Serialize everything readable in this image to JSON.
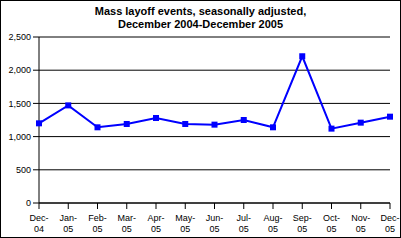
{
  "chart_data": {
    "type": "line",
    "title": "Mass layoff events, seasonally adjusted, December 2004-December 2005",
    "categories": [
      "Dec-04",
      "Jan-05",
      "Feb-05",
      "Mar-05",
      "Apr-05",
      "May-05",
      "Jun-05",
      "Jul-05",
      "Aug-05",
      "Sep-05",
      "Oct-05",
      "Nov-05",
      "Dec-05"
    ],
    "values": [
      1200,
      1470,
      1140,
      1190,
      1280,
      1190,
      1180,
      1250,
      1140,
      2210,
      1120,
      1210,
      1300
    ],
    "color": "#0000ff",
    "marker": "square",
    "ylim": [
      0,
      2500
    ],
    "yticks": [
      0,
      500,
      {
        "value": 1000,
        "label": "1,000"
      },
      {
        "value": 1500,
        "label": "1,500"
      },
      {
        "value": 2000,
        "label": "2,000"
      },
      {
        "value": 2500,
        "label": "2,500"
      }
    ],
    "grid": true
  }
}
